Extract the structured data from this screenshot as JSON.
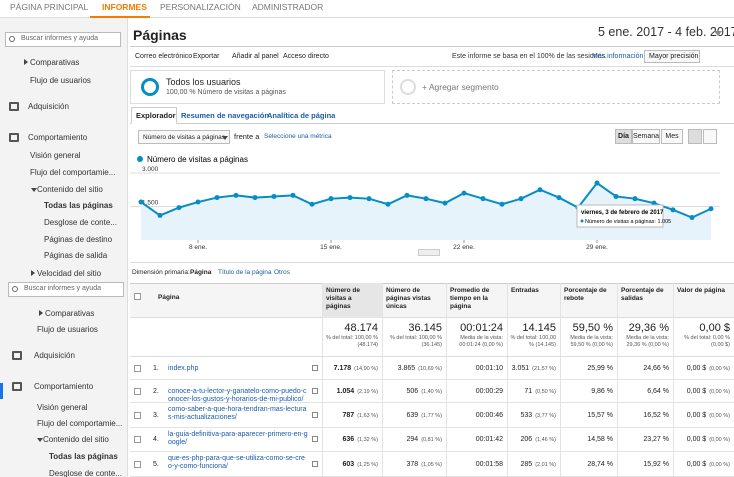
{
  "nav": [
    "PÁGINA PRINCIPAL",
    "INFORMES",
    "PERSONALIZACIÓN",
    "ADMINISTRADOR"
  ],
  "sidebar_top": {
    "search": "Buscar informes y ayuda",
    "items": [
      "Comparativas",
      "Flujo de usuarios",
      "Adquisición",
      "Comportamiento",
      "Visión general",
      "Flujo del comportamie...",
      "Contenido del sitio",
      "Todas las páginas",
      "Desglose de conte...",
      "Páginas de destino",
      "Páginas de salida",
      "Velocidad del sitio"
    ]
  },
  "sidebar_bottom": {
    "search": "Buscar informes y ayuda",
    "items": [
      "Comparativas",
      "Flujo de usuarios",
      "Adquisición",
      "Comportamiento",
      "Visión general",
      "Flujo del comportamie...",
      "Contenido del sitio",
      "Todas las páginas",
      "Desglose de conte..."
    ]
  },
  "header": {
    "title": "Páginas",
    "date_range": "5 ene. 2017 - 4 feb. 2017"
  },
  "toolbar": {
    "actions": [
      "Correo electrónico",
      "Exportar",
      "Añadir al panel",
      "Acceso directo"
    ],
    "sampling_note": "Este informe se basa en el 100% de las sesiones.",
    "more_info": "Más información",
    "precision": "Mayor precisión"
  },
  "segments": {
    "name": "Todos los usuarios",
    "detail": "100,00 % Número de visitas a páginas",
    "add": "+ Agregar segmento"
  },
  "tabs": [
    "Explorador",
    "Resumen de navegación",
    "Analítica de página"
  ],
  "controls": {
    "metric": "Número de visitas a páginas",
    "versus": "frente a",
    "select_metric": "Seleccione una métrica",
    "periods": [
      "Día",
      "Semana",
      "Mes"
    ]
  },
  "chart_data": {
    "type": "line",
    "categories": [
      null,
      null,
      null,
      "8 ene.",
      null,
      null,
      null,
      null,
      null,
      null,
      "15 ene.",
      null,
      null,
      null,
      null,
      null,
      null,
      "22 ene.",
      null,
      null,
      null,
      null,
      null,
      null,
      "29 ene.",
      null,
      null,
      null,
      null,
      null,
      null
    ],
    "series": [
      {
        "name": "Número de visitas a páginas",
        "color": "#058dc7",
        "values": [
          1700,
          1100,
          1450,
          1700,
          1900,
          2000,
          1900,
          1950,
          2000,
          1600,
          1850,
          1900,
          1850,
          1600,
          2000,
          1850,
          1650,
          2100,
          1850,
          1600,
          1850,
          2250,
          1900,
          1450,
          2550,
          1950,
          1850,
          1650,
          1350,
          1005,
          1400
        ]
      }
    ],
    "ylim": [
      0,
      3000
    ],
    "yticks": [
      {
        "value": 1500,
        "label": "1.500"
      },
      {
        "value": 3000,
        "label": "3.000"
      }
    ],
    "grid": true,
    "tooltip": {
      "title": "viernes, 3 de febrero de 2017",
      "text": "Número de visitas a páginas: 1.005"
    }
  },
  "dimension": {
    "label": "Dimensión primaria:",
    "active": "Página",
    "options": [
      "Título de la página",
      "Otros"
    ]
  },
  "table": {
    "headers": [
      "Página",
      "Número de visitas a páginas",
      "Número de páginas vistas únicas",
      "Promedio de tiempo en la página",
      "Entradas",
      "Porcentaje de rebote",
      "Porcentaje de salidas",
      "Valor de página"
    ],
    "totals": [
      {
        "value": "48.174",
        "note": "% del total: 100,00 % (48.174)"
      },
      {
        "value": "36.145",
        "note": "% del total: 100,00 % (36.145)"
      },
      {
        "value": "00:01:24",
        "note": "Media de la vista: 00:01:24 (0,00 %)"
      },
      {
        "value": "14.145",
        "note": "% del total: 100,00 % (14.145)"
      },
      {
        "value": "59,50 %",
        "note": "Media de la vista: 59,50 % (0,00 %)"
      },
      {
        "value": "29,36 %",
        "note": "Media de la vista: 29,36 % (0,00 %)"
      },
      {
        "value": "0,00 $",
        "note": "% del total: 0,00 % (0,00 $)"
      }
    ],
    "rows": [
      [
        "1.",
        "index.php",
        "7.178",
        "(14,90 %)",
        "3.865",
        "(10,69 %)",
        "00:01:10",
        "3.051",
        "(21,57 %)",
        "25,99 %",
        "24,66 %",
        "0,00 $",
        "(0,00 %)"
      ],
      [
        "2.",
        "conoce-a-tu-lector-y-ganatelo-como-puedo-conocer-los-gustos-y-horarios-de-mi-publico/",
        "1.054",
        "(2,19 %)",
        "506",
        "(1,40 %)",
        "00:00:29",
        "71",
        "(0,50 %)",
        "9,86 %",
        "6,64 %",
        "0,00 $",
        "(0,00 %)"
      ],
      [
        "3.",
        "como-saber-a-que-hora-tendran-mas-lecturas-mis-actualizaciones/",
        "787",
        "(1,63 %)",
        "639",
        "(1,77 %)",
        "00:00:46",
        "533",
        "(3,77 %)",
        "15,57 %",
        "16,52 %",
        "0,00 $",
        "(0,00 %)"
      ],
      [
        "4.",
        "la-guia-definitiva-para-aparecer-primero-en-google/",
        "636",
        "(1,32 %)",
        "294",
        "(0,81 %)",
        "00:01:42",
        "206",
        "(1,46 %)",
        "14,58 %",
        "23,27 %",
        "0,00 $",
        "(0,00 %)"
      ],
      [
        "5.",
        "que-es-php-para-que-se-utiliza-como-se-creo-y-como-funciona/",
        "603",
        "(1,25 %)",
        "378",
        "(1,05 %)",
        "00:01:58",
        "285",
        "(2,01 %)",
        "28,74 %",
        "15,92 %",
        "0,00 $",
        "(0,00 %)"
      ]
    ]
  }
}
